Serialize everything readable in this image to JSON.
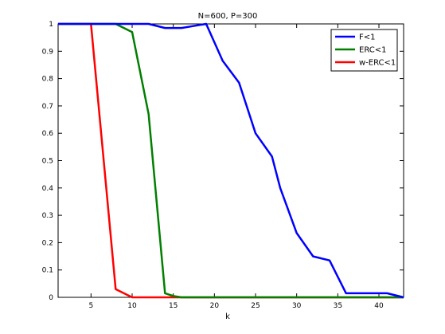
{
  "chart_data": {
    "type": "line",
    "title": "N=600, P=300",
    "xlabel": "k",
    "ylabel": "",
    "xlim": [
      1,
      43
    ],
    "ylim": [
      0,
      1
    ],
    "xticks": [
      5,
      10,
      15,
      20,
      25,
      30,
      35,
      40
    ],
    "yticks": [
      0,
      0.1,
      0.2,
      0.3,
      0.4,
      0.5,
      0.6,
      0.7,
      0.8,
      0.9,
      1
    ],
    "grid": false,
    "legend": "top-right",
    "series": [
      {
        "name": "F<1",
        "color": "#0000ff",
        "x": [
          1,
          5,
          8,
          12,
          14,
          16,
          18,
          19,
          21,
          23,
          25,
          27,
          28,
          30,
          32,
          34,
          36,
          38,
          41,
          43
        ],
        "y": [
          1,
          1,
          1,
          1,
          0.985,
          0.985,
          0.995,
          1,
          0.865,
          0.785,
          0.6,
          0.515,
          0.4,
          0.235,
          0.15,
          0.135,
          0.015,
          0.015,
          0.015,
          0
        ]
      },
      {
        "name": "ERC<1",
        "color": "#007f00",
        "x": [
          1,
          4,
          8,
          10,
          12,
          14,
          15,
          16,
          43
        ],
        "y": [
          1,
          1,
          1,
          0.97,
          0.67,
          0.015,
          0.005,
          0,
          0
        ]
      },
      {
        "name": "w-ERC<1",
        "color": "#ff0000",
        "x": [
          1,
          5,
          8,
          10,
          43
        ],
        "y": [
          1,
          1,
          0.03,
          0,
          0
        ]
      }
    ]
  }
}
